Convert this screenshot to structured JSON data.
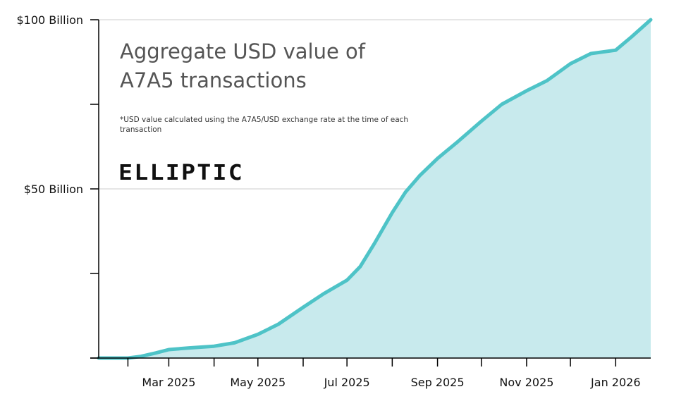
{
  "chart_data": {
    "type": "area",
    "title_lines": [
      "Aggregate USD value of",
      "A7A5 transactions"
    ],
    "note_lines": [
      "*USD value calculated using the A7A5/USD exchange rate at the time of each",
      "transaction"
    ],
    "logo": "ELLIPTIC",
    "xlabel": "",
    "ylabel": "",
    "ylim": [
      0,
      100
    ],
    "y_ticks": [
      0,
      25,
      50,
      75,
      100
    ],
    "y_tick_labels": [
      {
        "value": 50,
        "label": "$50 Billion"
      },
      {
        "value": 100,
        "label": "$100 Billion"
      }
    ],
    "x_range": [
      "2025-01-12",
      "2026-01-25"
    ],
    "x_ticks": [
      "2025-02-01",
      "2025-03-01",
      "2025-04-01",
      "2025-05-01",
      "2025-06-01",
      "2025-07-01",
      "2025-08-01",
      "2025-09-01",
      "2025-10-01",
      "2025-11-01",
      "2025-12-01",
      "2026-01-01"
    ],
    "x_tick_labels": [
      {
        "date": "2025-03-01",
        "label": "Mar 2025"
      },
      {
        "date": "2025-05-01",
        "label": "May 2025"
      },
      {
        "date": "2025-07-01",
        "label": "Jul 2025"
      },
      {
        "date": "2025-09-01",
        "label": "Sep 2025"
      },
      {
        "date": "2025-11-01",
        "label": "Nov 2025"
      },
      {
        "date": "2026-01-01",
        "label": "Jan 2026"
      }
    ],
    "grid": "horizontal",
    "legend": "none",
    "colors": {
      "line": "#4ec3c7",
      "fill": "#c8eaed",
      "grid": "#cccccc",
      "axis": "#000000"
    },
    "series": [
      {
        "x": [
          "2025-01-12",
          "2025-02-01",
          "2025-02-10",
          "2025-02-20",
          "2025-03-01",
          "2025-03-15",
          "2025-04-01",
          "2025-04-15",
          "2025-05-01",
          "2025-05-15",
          "2025-06-01",
          "2025-06-15",
          "2025-07-01",
          "2025-07-10",
          "2025-07-20",
          "2025-08-01",
          "2025-08-10",
          "2025-08-20",
          "2025-09-01",
          "2025-09-15",
          "2025-10-01",
          "2025-10-15",
          "2025-11-01",
          "2025-11-15",
          "2025-12-01",
          "2025-12-15",
          "2026-01-01",
          "2026-01-12",
          "2026-01-25"
        ],
        "y": [
          0,
          0,
          0.5,
          1.5,
          2.5,
          3,
          3.5,
          4.5,
          7,
          10,
          15,
          19,
          23,
          27,
          34,
          43,
          49,
          54,
          59,
          64,
          70,
          75,
          79,
          82,
          87,
          90,
          91,
          95,
          100
        ]
      }
    ]
  }
}
